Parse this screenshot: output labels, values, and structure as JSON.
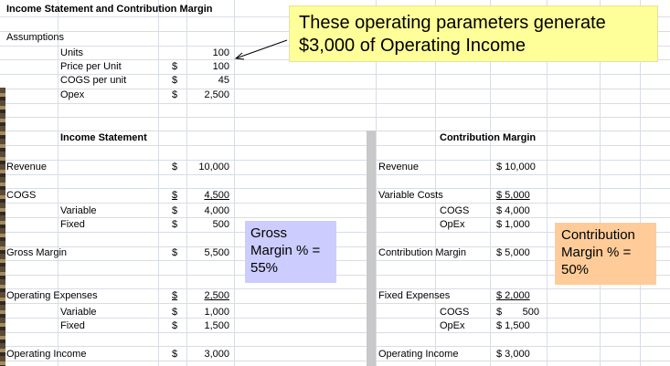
{
  "title": "Income Statement and Contribution Margin",
  "assumptions": {
    "heading": "Assumptions",
    "rows": [
      {
        "label": "Units",
        "dollar": "",
        "value": "100"
      },
      {
        "label": "Price per Unit",
        "dollar": "$",
        "value": "100"
      },
      {
        "label": "COGS per unit",
        "dollar": "$",
        "value": "45"
      },
      {
        "label": "Opex",
        "dollar": "$",
        "value": "2,500"
      }
    ]
  },
  "callout": {
    "line1": "These operating parameters generate",
    "line2": "$3,000 of Operating Income"
  },
  "income_statement": {
    "heading": "Income Statement",
    "revenue": {
      "label": "Revenue",
      "dollar": "$",
      "value": "10,000"
    },
    "cogs": {
      "label": "COGS",
      "dollar": "$",
      "value": "4,500"
    },
    "cogs_variable": {
      "label": "Variable",
      "dollar": "$",
      "value": "4,000"
    },
    "cogs_fixed": {
      "label": "Fixed",
      "dollar": "$",
      "value": "500"
    },
    "gross_margin": {
      "label": "Gross Margin",
      "dollar": "$",
      "value": "5,500"
    },
    "opex": {
      "label": "Operating Expenses",
      "dollar": "$",
      "value": "2,500"
    },
    "opex_variable": {
      "label": "Variable",
      "dollar": "$",
      "value": "1,000"
    },
    "opex_fixed": {
      "label": "Fixed",
      "dollar": "$",
      "value": "1,500"
    },
    "operating_income": {
      "label": "Operating Income",
      "dollar": "$",
      "value": "3,000"
    }
  },
  "contribution_margin": {
    "heading": "Contribution Margin",
    "revenue": {
      "label": "Revenue",
      "value": "$ 10,000"
    },
    "variable_costs": {
      "label": "Variable Costs",
      "value": "$ 5,000"
    },
    "vc_cogs": {
      "label": "COGS",
      "value": "$ 4,000"
    },
    "vc_opex": {
      "label": "OpEx",
      "value": "$ 1,000"
    },
    "contribution_margin": {
      "label": "Contribution Margin",
      "value": "$ 5,000"
    },
    "fixed_expenses": {
      "label": "Fixed Expenses",
      "value": "$ 2,000"
    },
    "fe_cogs": {
      "label": "COGS",
      "dollar": "$",
      "value": "500"
    },
    "fe_opex": {
      "label": "OpEx",
      "value": "$ 1,500"
    },
    "operating_income": {
      "label": "Operating Income",
      "value": "$ 3,000"
    }
  },
  "gross_margin_box": {
    "line1": "Gross",
    "line2": "Margin % =",
    "line3": "55%"
  },
  "cm_box": {
    "line1": "Contribution",
    "line2": "Margin % =",
    "line3": "50%"
  },
  "colors": {
    "callout_bg": "#ffff99",
    "gross_box_bg": "#ccccff",
    "cm_box_bg": "#ffcc99",
    "grid": "#d8dde4"
  }
}
